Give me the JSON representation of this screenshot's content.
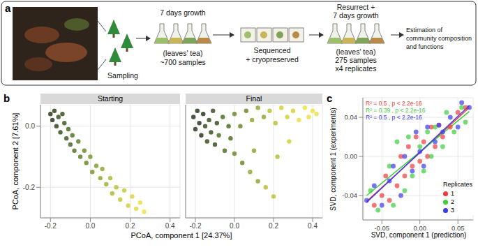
{
  "diagram": {
    "panel": "a",
    "steps": [
      {
        "text": [
          "Sampling"
        ]
      },
      {
        "top": [
          "7 days growth"
        ],
        "bottom": [
          "(leaves' tea)",
          "~700 samples"
        ]
      },
      {
        "bottom": [
          "Sequenced",
          "+ cryopreserved"
        ]
      },
      {
        "top": [
          "Resurrect +",
          "7 days growth"
        ],
        "bottom": [
          "(leaves' tea)",
          "275 samples",
          "x4 replicates"
        ]
      },
      {
        "text": [
          "Estimation of",
          "community composition",
          "and functions"
        ]
      }
    ]
  },
  "chart_data": [
    {
      "panel": "b",
      "type": "scatter",
      "xlabel": "PCoA, component 1 [24.37%]",
      "ylabel": "PCoA, component 2 [7.61%]",
      "xlim": [
        -0.25,
        0.45
      ],
      "ylim": [
        -0.3,
        0.07
      ],
      "xticks": [
        -0.2,
        {
          "value": 0,
          "label": "0.0"
        },
        0.2,
        0.4
      ],
      "yticks": [
        -0.2,
        {
          "value": 0,
          "label": "0.0"
        }
      ],
      "grid": true,
      "facets": [
        {
          "title": "Starting",
          "x": [
            -0.2,
            -0.19,
            -0.18,
            -0.17,
            -0.16,
            -0.15,
            -0.14,
            -0.13,
            -0.12,
            -0.11,
            -0.1,
            -0.09,
            -0.08,
            -0.06,
            -0.05,
            -0.03,
            -0.02,
            0,
            0.01,
            0.03,
            0.05,
            0.06,
            0.08,
            0.1,
            0.11,
            0.13,
            0.15,
            0.17,
            0.19,
            0.21,
            0.23,
            0.25,
            0.27
          ],
          "y": [
            0.04,
            0.02,
            0.05,
            0,
            0.03,
            -0.02,
            0.04,
            0.01,
            -0.04,
            -0.01,
            -0.06,
            -0.03,
            -0.08,
            -0.05,
            -0.1,
            -0.08,
            -0.12,
            -0.1,
            -0.15,
            -0.13,
            -0.17,
            -0.14,
            -0.19,
            -0.17,
            -0.22,
            -0.2,
            -0.24,
            -0.21,
            -0.26,
            -0.23,
            -0.27,
            -0.25,
            -0.28
          ],
          "colors": [
            "#2b3a1f",
            "#2b3a1f",
            "#33451f",
            "#33451f",
            "#3a5222",
            "#3a5222",
            "#3a5222",
            "#415e24",
            "#415e24",
            "#4a6a26",
            "#4a6a26",
            "#537628",
            "#537628",
            "#5f822a",
            "#5f822a",
            "#6b8c2c",
            "#6b8c2c",
            "#78962e",
            "#78962e",
            "#85a030",
            "#92a832",
            "#92a832",
            "#a0b034",
            "#aeb836",
            "#aeb836",
            "#bcc038",
            "#c8c83a",
            "#c8c83a",
            "#d4d03c",
            "#dcd43e",
            "#e4da40",
            "#eadf42",
            "#f0e444"
          ]
        },
        {
          "title": "Final",
          "x": [
            -0.21,
            -0.2,
            -0.19,
            -0.18,
            -0.17,
            -0.16,
            -0.15,
            -0.14,
            -0.13,
            -0.12,
            -0.11,
            -0.1,
            -0.09,
            -0.08,
            -0.06,
            -0.05,
            -0.03,
            -0.02,
            0,
            0.03,
            0.06,
            0.09,
            0.12,
            0.15,
            0.18,
            0.21,
            0.24,
            0.27,
            0.3,
            0.33,
            0.36,
            0.38,
            0.4,
            0.42,
            0,
            0.04,
            0.08,
            0.12,
            0.16,
            0.2,
            0.1,
            0.22,
            0.28
          ],
          "y": [
            0.03,
            -0.01,
            0.05,
            0.01,
            -0.03,
            0.04,
            0,
            -0.05,
            0.02,
            -0.02,
            0.05,
            -0.06,
            0.01,
            -0.03,
            0.03,
            -0.08,
            0,
            -0.04,
            0.04,
            0,
            0.05,
            0.02,
            0.06,
            0.03,
            0.05,
            0.01,
            0.06,
            0.03,
            0.05,
            0.02,
            0.06,
            0.03,
            0.05,
            0.04,
            -0.09,
            -0.12,
            -0.15,
            -0.18,
            -0.2,
            -0.23,
            -0.08,
            -0.1,
            -0.05
          ],
          "colors": [
            "#2b3a1f",
            "#2b3a1f",
            "#2b3a1f",
            "#2b3a1f",
            "#2b3a1f",
            "#2b3a1f",
            "#3a5222",
            "#3a5222",
            "#3a5222",
            "#3a5222",
            "#3a5222",
            "#3a5222",
            "#3a5222",
            "#4f7027",
            "#4f7027",
            "#4f7027",
            "#4f7027",
            "#4f7027",
            "#6b8c2c",
            "#6b8c2c",
            "#6b8c2c",
            "#92a832",
            "#92a832",
            "#92a832",
            "#b8be38",
            "#b8be38",
            "#d4d03c",
            "#d4d03c",
            "#d4d03c",
            "#ece044",
            "#ece044",
            "#ece044",
            "#ece044",
            "#ece044",
            "#6b8c2c",
            "#6b8c2c",
            "#92a832",
            "#92a832",
            "#b8be38",
            "#b8be38",
            "#92a832",
            "#b8be38",
            "#d4d03c"
          ]
        }
      ]
    },
    {
      "panel": "c",
      "type": "scatter",
      "xlabel": "SVD, component 1 (prediction)",
      "ylabel": "SVD, component 1 (experiments)",
      "xlim": [
        -0.075,
        0.07
      ],
      "ylim": [
        -0.065,
        0.06
      ],
      "xticks": [
        -0.05,
        {
          "value": 0,
          "label": "0.00"
        },
        0.05
      ],
      "yticks": [
        -0.04,
        {
          "value": 0,
          "label": "0.00"
        },
        0.04
      ],
      "grid": true,
      "legend": "bottom right",
      "legend_title": "Replicates",
      "series": [
        {
          "name": "1",
          "color": "#f03a3a",
          "annotation": "R² = 0.5 , p < 2.2e-16",
          "x": [
            -0.06,
            -0.05,
            -0.045,
            -0.04,
            -0.03,
            -0.025,
            -0.02,
            -0.015,
            -0.01,
            -0.005,
            0,
            0.005,
            0.01,
            0.015,
            0.02,
            0.025,
            0.03,
            0.04,
            0.05,
            0.06
          ],
          "y": [
            -0.05,
            -0.04,
            -0.02,
            -0.045,
            -0.03,
            0,
            -0.02,
            0.01,
            -0.01,
            0.02,
            -0.005,
            0.015,
            0,
            0.03,
            0.01,
            0.032,
            0.02,
            0.03,
            0.045,
            0.05
          ],
          "fit": {
            "x": [
              -0.07,
              0.065
            ],
            "y": [
              -0.046,
              0.05
            ]
          }
        },
        {
          "name": "2",
          "color": "#3ccf3c",
          "annotation": "R² = 0.39 , p < 2.2e-16",
          "x": [
            -0.065,
            -0.055,
            -0.04,
            -0.035,
            -0.03,
            -0.02,
            -0.015,
            -0.01,
            0,
            0.005,
            0.01,
            0.015,
            0.02,
            0.03,
            0.035,
            0.045,
            0.055,
            0.06
          ],
          "y": [
            -0.035,
            -0.055,
            -0.01,
            -0.05,
            0.015,
            -0.035,
            0.02,
            -0.02,
            0.01,
            -0.015,
            0.025,
            0,
            0.03,
            0.01,
            0.045,
            0.025,
            0.05,
            0.035
          ],
          "fit": {
            "x": [
              -0.07,
              0.065
            ],
            "y": [
              -0.04,
              0.046
            ]
          }
        },
        {
          "name": "3",
          "color": "#3a3af0",
          "annotation": "R² = 0.5 , p < 2.2e-16",
          "x": [
            -0.07,
            -0.06,
            -0.05,
            -0.04,
            -0.035,
            -0.025,
            -0.02,
            -0.01,
            -0.005,
            0,
            0.005,
            0.01,
            0.02,
            0.025,
            0.03,
            0.04,
            0.05,
            0.055,
            0.065
          ],
          "y": [
            -0.045,
            -0.03,
            -0.05,
            -0.025,
            -0.01,
            -0.04,
            0,
            -0.015,
            0.025,
            0.005,
            -0.01,
            0.03,
            0.015,
            0.032,
            0.025,
            0.04,
            0.03,
            0.055,
            0.05
          ],
          "fit": {
            "x": [
              -0.07,
              0.065
            ],
            "y": [
              -0.047,
              0.052
            ]
          }
        }
      ]
    }
  ]
}
